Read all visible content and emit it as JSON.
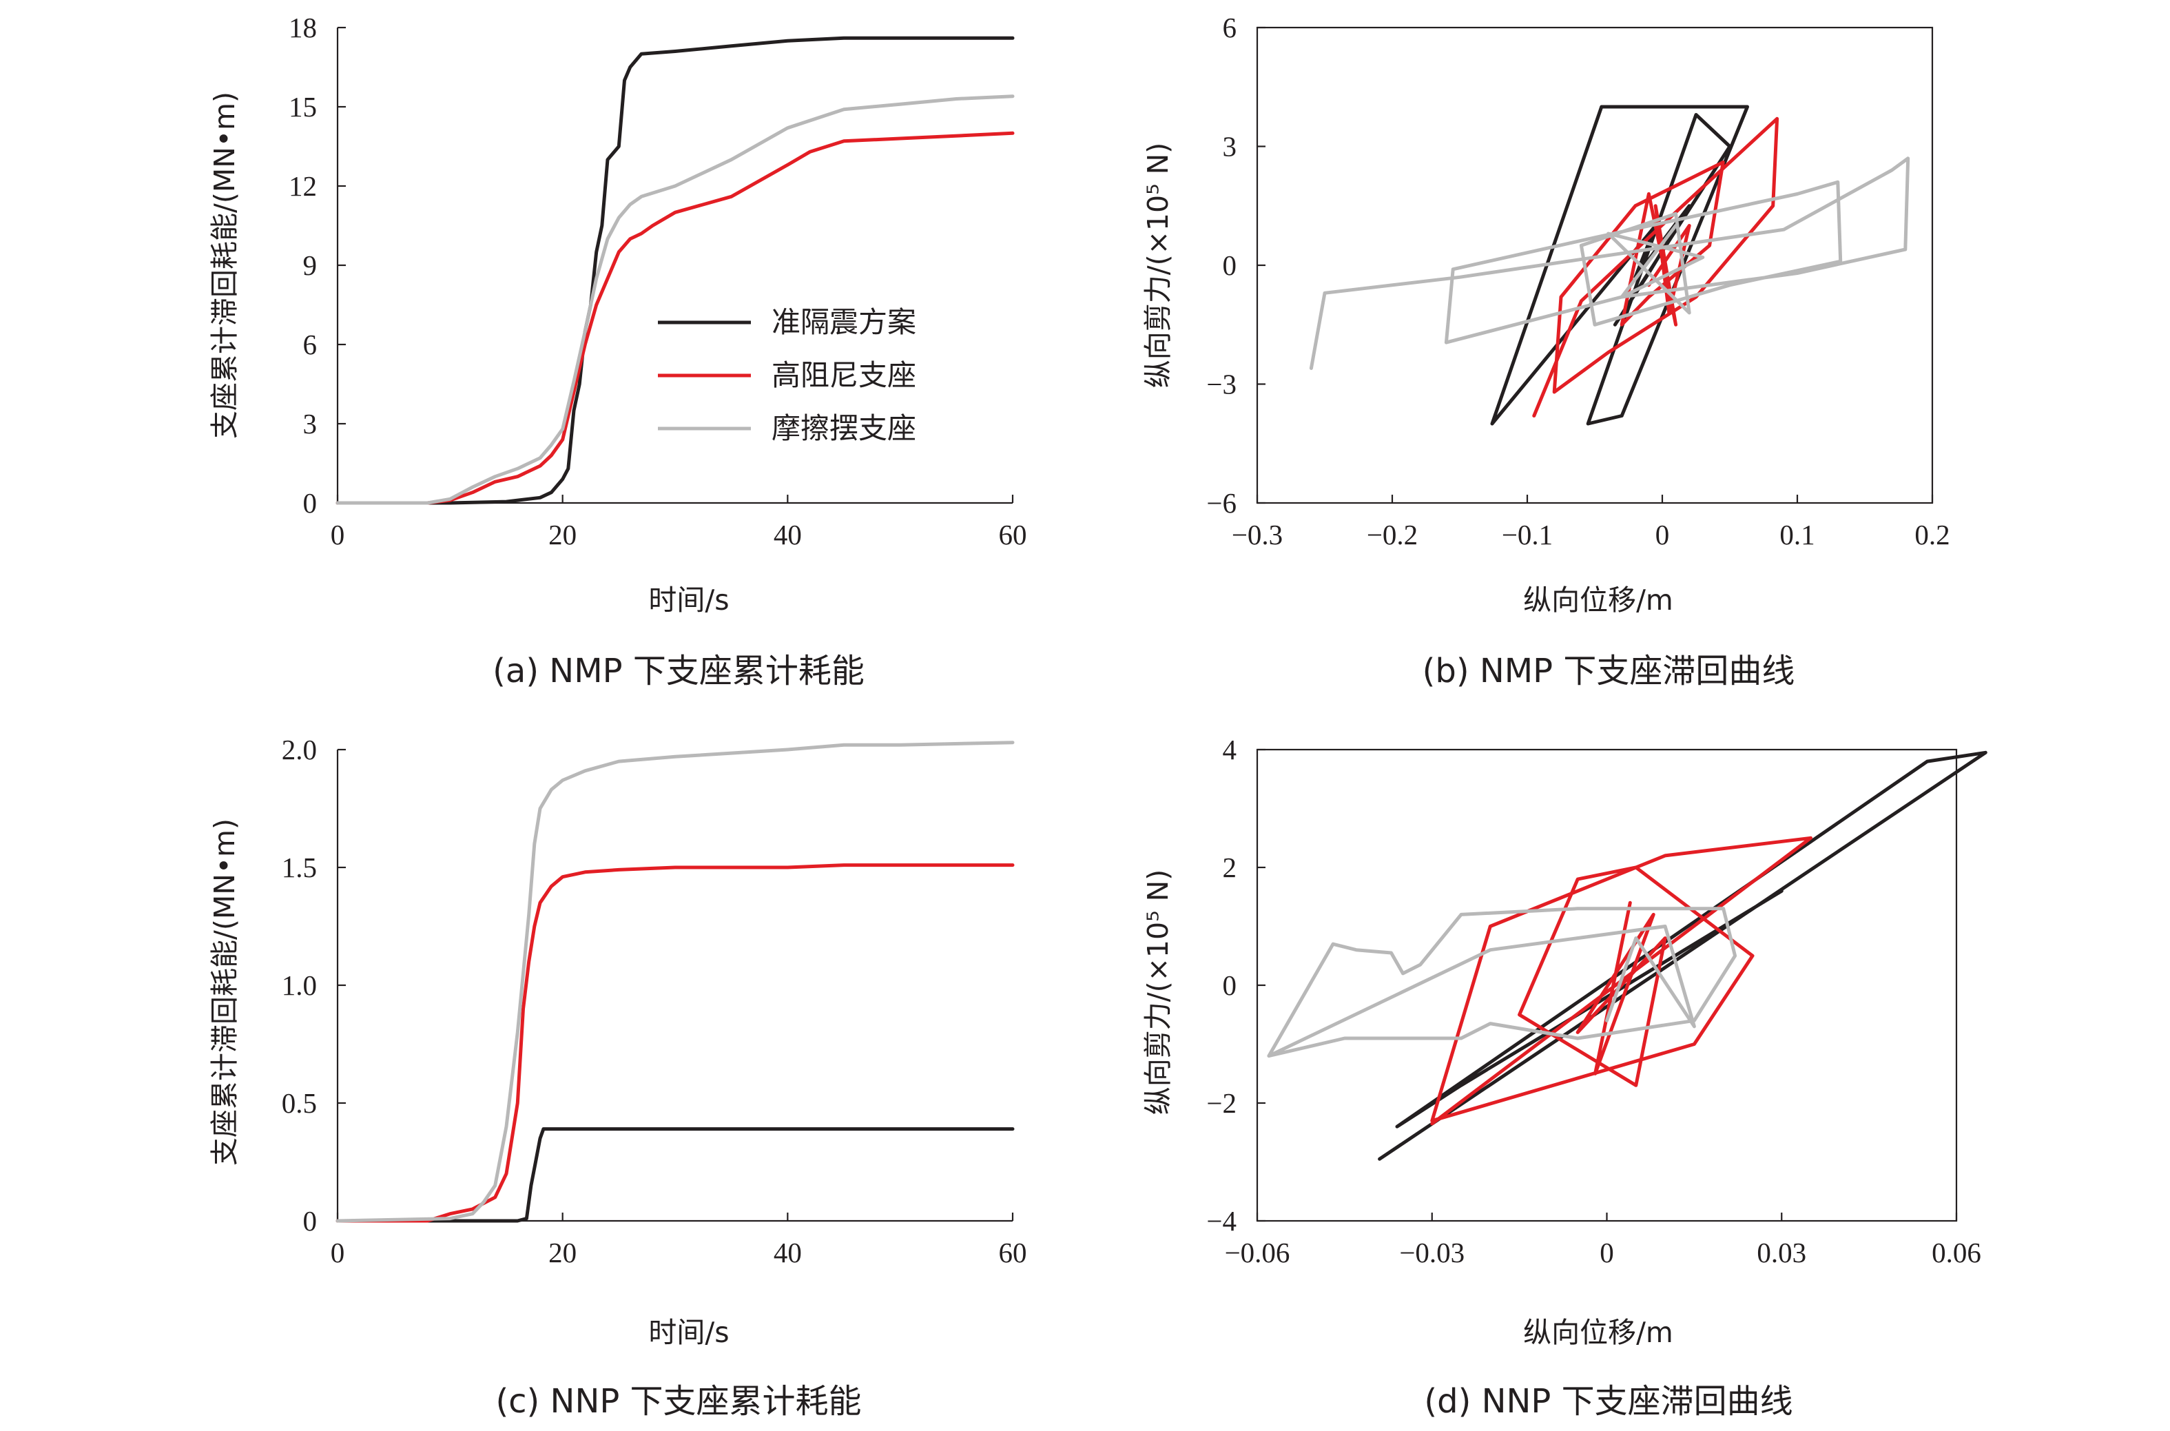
{
  "colors": {
    "black": "#231f20",
    "red": "#e31e24",
    "gray": "#b8b8b8"
  },
  "chart_data": [
    {
      "id": "a",
      "type": "line",
      "caption": "(a) NMP 下支座累计耗能",
      "xlabel": "时间/s",
      "ylabel": "支座累计滞回耗能/(MN•m)",
      "xlim": [
        0,
        60
      ],
      "ylim": [
        0,
        18
      ],
      "xticks": [
        0,
        20,
        40,
        60
      ],
      "yticks": [
        0,
        3,
        6,
        9,
        12,
        15,
        18
      ],
      "xtick_labels": [
        "0",
        "20",
        "40",
        "60"
      ],
      "ytick_labels": [
        "0",
        "3",
        "6",
        "9",
        "12",
        "15",
        "18"
      ],
      "legend": {
        "position": "center-right"
      },
      "series": [
        {
          "name": "准隔震方案",
          "color": "black",
          "points": [
            [
              0,
              0
            ],
            [
              10,
              0
            ],
            [
              15,
              0.05
            ],
            [
              18,
              0.2
            ],
            [
              19,
              0.4
            ],
            [
              20,
              0.9
            ],
            [
              20.5,
              1.3
            ],
            [
              21,
              3.5
            ],
            [
              21.5,
              4.5
            ],
            [
              22,
              6.5
            ],
            [
              22.5,
              7.5
            ],
            [
              23,
              9.5
            ],
            [
              23.5,
              10.5
            ],
            [
              24,
              13
            ],
            [
              25,
              13.5
            ],
            [
              25.5,
              16
            ],
            [
              26,
              16.5
            ],
            [
              27,
              17
            ],
            [
              30,
              17.1
            ],
            [
              35,
              17.3
            ],
            [
              40,
              17.5
            ],
            [
              45,
              17.6
            ],
            [
              60,
              17.6
            ]
          ]
        },
        {
          "name": "高阻尼支座",
          "color": "red",
          "points": [
            [
              0,
              0
            ],
            [
              8,
              0
            ],
            [
              10,
              0.1
            ],
            [
              12,
              0.4
            ],
            [
              14,
              0.8
            ],
            [
              16,
              1
            ],
            [
              18,
              1.4
            ],
            [
              19,
              1.8
            ],
            [
              20,
              2.4
            ],
            [
              21,
              4.2
            ],
            [
              22,
              6
            ],
            [
              23,
              7.5
            ],
            [
              24,
              8.5
            ],
            [
              25,
              9.5
            ],
            [
              26,
              10
            ],
            [
              27,
              10.2
            ],
            [
              28,
              10.5
            ],
            [
              30,
              11
            ],
            [
              35,
              11.6
            ],
            [
              40,
              12.8
            ],
            [
              42,
              13.3
            ],
            [
              45,
              13.7
            ],
            [
              50,
              13.8
            ],
            [
              60,
              14
            ]
          ]
        },
        {
          "name": "摩擦摆支座",
          "color": "gray",
          "points": [
            [
              0,
              0
            ],
            [
              8,
              0
            ],
            [
              10,
              0.15
            ],
            [
              12,
              0.6
            ],
            [
              14,
              1
            ],
            [
              16,
              1.3
            ],
            [
              18,
              1.7
            ],
            [
              19,
              2.2
            ],
            [
              20,
              2.8
            ],
            [
              21,
              4.6
            ],
            [
              22,
              6.5
            ],
            [
              23,
              8.5
            ],
            [
              24,
              10
            ],
            [
              25,
              10.8
            ],
            [
              26,
              11.3
            ],
            [
              27,
              11.6
            ],
            [
              30,
              12
            ],
            [
              35,
              13
            ],
            [
              40,
              14.2
            ],
            [
              45,
              14.9
            ],
            [
              50,
              15.1
            ],
            [
              55,
              15.3
            ],
            [
              60,
              15.4
            ]
          ]
        }
      ]
    },
    {
      "id": "b",
      "type": "line",
      "caption": "(b) NMP 下支座滞回曲线",
      "xlabel": "纵向位移/m",
      "ylabel": "纵向剪力/(×10⁵ N)",
      "xlim": [
        -0.3,
        0.2
      ],
      "ylim": [
        -6,
        6
      ],
      "xticks": [
        -0.3,
        -0.2,
        -0.1,
        0,
        0.1,
        0.2
      ],
      "yticks": [
        -6,
        -3,
        0,
        3,
        6
      ],
      "xtick_labels": [
        "−0.3",
        "−0.2",
        "−0.1",
        "0",
        "0.1",
        "0.2"
      ],
      "ytick_labels": [
        "−6",
        "−3",
        "0",
        "3",
        "6"
      ],
      "series": [
        {
          "color": "black",
          "points": [
            [
              -0.126,
              -4
            ],
            [
              -0.045,
              4
            ],
            [
              0.063,
              4
            ],
            [
              -0.03,
              -3.8
            ],
            [
              -0.055,
              -4
            ],
            [
              0.025,
              3.8
            ],
            [
              0.05,
              3
            ],
            [
              -0.035,
              -1.5
            ],
            [
              -0.01,
              -0.2
            ],
            [
              0.02,
              1.5
            ],
            [
              -0.02,
              -0.3
            ],
            [
              -0.005,
              1
            ],
            [
              -0.126,
              -4
            ]
          ]
        },
        {
          "color": "red",
          "points": [
            [
              -0.095,
              -3.8
            ],
            [
              -0.06,
              -0.9
            ],
            [
              0.015,
              1.5
            ],
            [
              0.085,
              3.7
            ],
            [
              0.082,
              1.5
            ],
            [
              0.025,
              -0.8
            ],
            [
              -0.04,
              -2.2
            ],
            [
              -0.08,
              -3.2
            ],
            [
              -0.075,
              -0.8
            ],
            [
              -0.02,
              1.5
            ],
            [
              0.045,
              2.6
            ],
            [
              0.035,
              0.5
            ],
            [
              -0.01,
              -0.8
            ],
            [
              -0.03,
              -1.5
            ],
            [
              -0.01,
              1.8
            ],
            [
              0.01,
              -1.5
            ],
            [
              -0.005,
              1.5
            ],
            [
              0.005,
              -1.2
            ],
            [
              0.02,
              1
            ],
            [
              -0.01,
              -0.5
            ]
          ]
        },
        {
          "color": "gray",
          "points": [
            [
              -0.26,
              -2.6
            ],
            [
              -0.25,
              -0.7
            ],
            [
              -0.15,
              -0.3
            ],
            [
              0.09,
              0.9
            ],
            [
              0.17,
              2.4
            ],
            [
              0.182,
              2.7
            ],
            [
              0.18,
              0.4
            ],
            [
              0.1,
              -0.2
            ],
            [
              -0.03,
              -0.8
            ],
            [
              -0.16,
              -1.95
            ],
            [
              -0.155,
              -0.1
            ],
            [
              -0.05,
              0.7
            ],
            [
              0.1,
              1.8
            ],
            [
              0.13,
              2.1
            ],
            [
              0.132,
              0.1
            ],
            [
              0.05,
              -0.5
            ],
            [
              -0.05,
              -1.5
            ],
            [
              -0.06,
              0.5
            ],
            [
              0.01,
              1.3
            ],
            [
              0.02,
              -1.2
            ],
            [
              -0.04,
              0.8
            ],
            [
              0.03,
              0.2
            ],
            [
              -0.03,
              -0.8
            ],
            [
              0.01,
              1
            ]
          ]
        }
      ]
    },
    {
      "id": "c",
      "type": "line",
      "caption": "(c) NNP 下支座累计耗能",
      "xlabel": "时间/s",
      "ylabel": "支座累计滞回耗能/(MN•m)",
      "xlim": [
        0,
        60
      ],
      "ylim": [
        0,
        2
      ],
      "xticks": [
        0,
        20,
        40,
        60
      ],
      "yticks": [
        0,
        0.5,
        1,
        1.5,
        2
      ],
      "xtick_labels": [
        "0",
        "20",
        "40",
        "60"
      ],
      "ytick_labels": [
        "0",
        "0.5",
        "1.0",
        "1.5",
        "2.0"
      ],
      "series": [
        {
          "color": "black",
          "points": [
            [
              0,
              0
            ],
            [
              16,
              0
            ],
            [
              16.8,
              0.01
            ],
            [
              17.2,
              0.15
            ],
            [
              17.6,
              0.25
            ],
            [
              18,
              0.35
            ],
            [
              18.3,
              0.39
            ],
            [
              30,
              0.39
            ],
            [
              60,
              0.39
            ]
          ]
        },
        {
          "color": "red",
          "points": [
            [
              0,
              0
            ],
            [
              8,
              0
            ],
            [
              10,
              0.03
            ],
            [
              12,
              0.05
            ],
            [
              14,
              0.1
            ],
            [
              15,
              0.2
            ],
            [
              16,
              0.5
            ],
            [
              16.5,
              0.9
            ],
            [
              17,
              1.1
            ],
            [
              17.5,
              1.25
            ],
            [
              18,
              1.35
            ],
            [
              19,
              1.42
            ],
            [
              20,
              1.46
            ],
            [
              22,
              1.48
            ],
            [
              25,
              1.49
            ],
            [
              30,
              1.5
            ],
            [
              40,
              1.5
            ],
            [
              45,
              1.51
            ],
            [
              60,
              1.51
            ]
          ]
        },
        {
          "color": "gray",
          "points": [
            [
              0,
              0
            ],
            [
              10,
              0.01
            ],
            [
              12,
              0.03
            ],
            [
              13,
              0.08
            ],
            [
              14,
              0.15
            ],
            [
              15,
              0.4
            ],
            [
              16,
              0.8
            ],
            [
              17,
              1.3
            ],
            [
              17.5,
              1.6
            ],
            [
              18,
              1.75
            ],
            [
              19,
              1.83
            ],
            [
              20,
              1.87
            ],
            [
              22,
              1.91
            ],
            [
              25,
              1.95
            ],
            [
              30,
              1.97
            ],
            [
              40,
              2
            ],
            [
              45,
              2.02
            ],
            [
              50,
              2.02
            ],
            [
              60,
              2.03
            ]
          ]
        }
      ]
    },
    {
      "id": "d",
      "type": "line",
      "caption": "(d) NNP 下支座滞回曲线",
      "xlabel": "纵向位移/m",
      "ylabel": "纵向剪力/(×10⁵ N)",
      "xlim": [
        -0.06,
        0.06
      ],
      "ylim": [
        -4,
        4
      ],
      "xticks": [
        -0.06,
        -0.03,
        0,
        0.03,
        0.06
      ],
      "yticks": [
        -4,
        -2,
        0,
        2,
        4
      ],
      "xtick_labels": [
        "−0.06",
        "−0.03",
        "0",
        "0.03",
        "0.06"
      ],
      "ytick_labels": [
        "−4",
        "−2",
        "0",
        "2",
        "4"
      ],
      "series": [
        {
          "color": "black",
          "points": [
            [
              -0.039,
              -2.95
            ],
            [
              0.065,
              3.95
            ],
            [
              0.055,
              3.8
            ],
            [
              -0.036,
              -2.4
            ],
            [
              -0.025,
              -1.7
            ],
            [
              0.03,
              1.6
            ]
          ]
        },
        {
          "color": "red",
          "points": [
            [
              -0.03,
              -2.35
            ],
            [
              0.035,
              2.5
            ],
            [
              0.01,
              2.2
            ],
            [
              -0.02,
              1
            ],
            [
              -0.03,
              -2.3
            ],
            [
              0.015,
              -1
            ],
            [
              0.025,
              0.5
            ],
            [
              0.005,
              2
            ],
            [
              -0.005,
              1.8
            ],
            [
              -0.015,
              -0.5
            ],
            [
              0.005,
              -1.7
            ],
            [
              0.01,
              0.8
            ],
            [
              -0.005,
              -0.8
            ],
            [
              0.008,
              1.2
            ],
            [
              -0.002,
              -1.5
            ],
            [
              0.004,
              1.4
            ]
          ]
        },
        {
          "color": "gray",
          "points": [
            [
              -0.058,
              -1.2
            ],
            [
              -0.047,
              0.7
            ],
            [
              -0.043,
              0.6
            ],
            [
              -0.037,
              0.55
            ],
            [
              -0.035,
              0.2
            ],
            [
              -0.032,
              0.35
            ],
            [
              -0.025,
              1.2
            ],
            [
              -0.005,
              1.3
            ],
            [
              0.02,
              1.3
            ],
            [
              0.022,
              0.5
            ],
            [
              0.015,
              -0.6
            ],
            [
              -0.005,
              -0.9
            ],
            [
              -0.02,
              -0.65
            ],
            [
              -0.025,
              -0.9
            ],
            [
              -0.045,
              -0.9
            ],
            [
              -0.058,
              -1.2
            ],
            [
              -0.02,
              0.6
            ],
            [
              0.01,
              1
            ],
            [
              0.015,
              -0.7
            ],
            [
              0.005,
              0.8
            ],
            [
              0,
              -0.6
            ]
          ]
        }
      ]
    }
  ]
}
